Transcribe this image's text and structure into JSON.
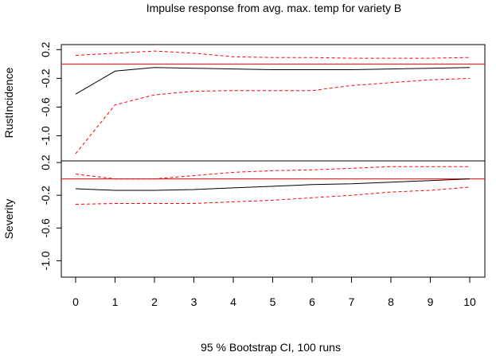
{
  "chart_data": {
    "type": "line",
    "title": "Impulse response from avg. max. temp for variety B",
    "xlabel": "95 % Bootstrap CI,  100 runs",
    "x": [
      0,
      1,
      2,
      3,
      4,
      5,
      6,
      7,
      8,
      9,
      10
    ],
    "x_ticks": [
      "0",
      "1",
      "2",
      "3",
      "4",
      "5",
      "6",
      "7",
      "8",
      "9",
      "10"
    ],
    "panels": [
      {
        "ylabel": "RustIncidence",
        "ylim": [
          -1.35,
          0.27
        ],
        "y_ticks": [
          0.2,
          -0.2,
          -0.6,
          -1.0
        ],
        "y_tick_labels": [
          "0.2",
          "-0.2",
          "-0.6",
          "-1.0"
        ],
        "zero_line": 0,
        "series": [
          {
            "role": "response",
            "values": [
              -0.42,
              -0.1,
              -0.05,
              -0.06,
              -0.07,
              -0.08,
              -0.08,
              -0.08,
              -0.07,
              -0.06,
              -0.05
            ]
          },
          {
            "role": "ci_upper",
            "values": [
              0.12,
              0.15,
              0.18,
              0.15,
              0.1,
              0.09,
              0.09,
              0.08,
              0.08,
              0.08,
              0.09
            ]
          },
          {
            "role": "ci_lower",
            "values": [
              -1.25,
              -0.57,
              -0.43,
              -0.38,
              -0.37,
              -0.37,
              -0.37,
              -0.3,
              -0.26,
              -0.22,
              -0.2
            ]
          }
        ]
      },
      {
        "ylabel": "Severity",
        "ylim": [
          -1.2,
          0.22
        ],
        "y_ticks": [
          0.2,
          -0.2,
          -0.6,
          -1.0
        ],
        "y_tick_labels": [
          "0.2",
          "-0.2",
          "-0.6",
          "-1.0"
        ],
        "extra_tick_labels": [
          "-0.2",
          "0.2"
        ],
        "zero_line": 0,
        "series": [
          {
            "role": "response",
            "values": [
              -0.12,
              -0.14,
              -0.14,
              -0.13,
              -0.11,
              -0.09,
              -0.07,
              -0.06,
              -0.04,
              -0.02,
              0.0
            ]
          },
          {
            "role": "ci_upper",
            "values": [
              0.06,
              0.0,
              0.0,
              0.04,
              0.08,
              0.1,
              0.11,
              0.13,
              0.15,
              0.15,
              0.15
            ]
          },
          {
            "role": "ci_lower",
            "values": [
              -0.31,
              -0.3,
              -0.3,
              -0.3,
              -0.28,
              -0.26,
              -0.23,
              -0.2,
              -0.16,
              -0.14,
              -0.1
            ]
          }
        ]
      }
    ],
    "colors": {
      "response": "#000000",
      "ci": "#ff0000",
      "zero_line": "#ff0000"
    },
    "grid": false,
    "legend": "none"
  }
}
